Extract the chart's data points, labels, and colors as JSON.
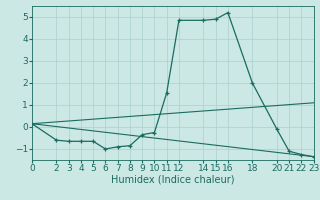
{
  "xlabel": "Humidex (Indice chaleur)",
  "bg_color": "#cce8e4",
  "grid_color": "#aad0cc",
  "line_color": "#1a6b60",
  "xlim": [
    0,
    23
  ],
  "ylim": [
    -1.5,
    5.5
  ],
  "xticks": [
    0,
    2,
    3,
    4,
    5,
    6,
    7,
    8,
    9,
    10,
    11,
    12,
    14,
    15,
    16,
    18,
    20,
    21,
    22,
    23
  ],
  "yticks": [
    -1,
    0,
    1,
    2,
    3,
    4,
    5
  ],
  "line1_x": [
    0,
    2,
    3,
    4,
    5,
    6,
    7,
    8,
    9,
    10,
    11,
    12,
    14,
    15,
    16,
    18,
    20,
    21,
    22,
    23
  ],
  "line1_y": [
    0.15,
    -0.6,
    -0.65,
    -0.65,
    -0.65,
    -1.0,
    -0.9,
    -0.85,
    -0.35,
    -0.25,
    1.55,
    4.85,
    4.85,
    4.9,
    5.2,
    2.0,
    -0.1,
    -1.1,
    -1.25,
    -1.35
  ],
  "line2_x": [
    0,
    23
  ],
  "line2_y": [
    0.15,
    1.1
  ],
  "line3_x": [
    0,
    23
  ],
  "line3_y": [
    0.15,
    -1.35
  ],
  "tick_fontsize": 6.5,
  "xlabel_fontsize": 7
}
